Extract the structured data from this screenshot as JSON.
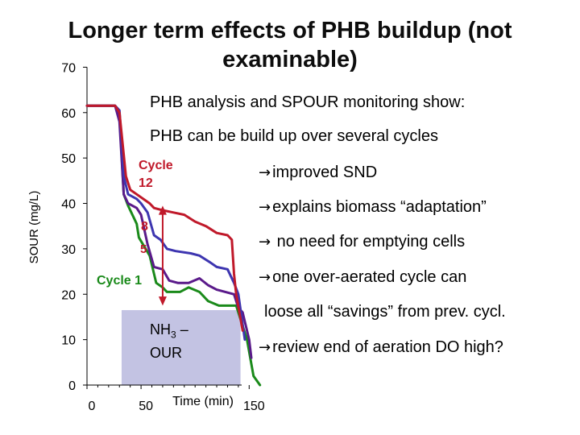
{
  "title": {
    "line1": "Longer term effects of PHB buildup (not",
    "line2": "examinable)"
  },
  "bullets": {
    "b1": "PHB analysis and SPOUR monitoring show:",
    "b2": "PHB can be build up over several cycles",
    "b3": "improved SND",
    "b4": "explains biomass “adaptation”",
    "b5": " no need for emptying cells",
    "b6": "one over-aerated cycle can",
    "b7": "loose all “savings” from prev. cycl.",
    "b8": "review end of aeration DO high?"
  },
  "nh3_box": {
    "label_main": "NH",
    "label_sub": "3",
    "label_rest": " –",
    "label_line2": "OUR",
    "color": "#c3c3e3"
  },
  "chart_data": {
    "type": "line",
    "ylabel": "SOUR (mg/L)",
    "xlabel": "Time (min)",
    "ylim": [
      0,
      70
    ],
    "yticks": [
      0,
      10,
      20,
      30,
      40,
      50,
      60,
      70
    ],
    "xticks": [
      0,
      50,
      150
    ],
    "xtick_labels": [
      "0",
      "50",
      "150"
    ],
    "nh3_region": {
      "x_start": 32,
      "x_end": 142,
      "y_top": 16.5
    },
    "series": [
      {
        "key": "c1",
        "name": "Cycle 1",
        "color": "#1a8a1a",
        "x": [
          0,
          26,
          30,
          34,
          38,
          46,
          48,
          58,
          64,
          70,
          74,
          86,
          94,
          104,
          112,
          122,
          130,
          138,
          148,
          154,
          160
        ],
        "y": [
          61.5,
          61.5,
          59.5,
          42,
          39.5,
          35.5,
          32.5,
          28.5,
          22.5,
          21.5,
          20.5,
          20.5,
          21.5,
          20.5,
          18.5,
          17.5,
          17.5,
          17.5,
          10,
          2,
          0
        ]
      },
      {
        "key": "c5",
        "name": "5",
        "color": "#5a1a8a",
        "x": [
          0,
          26,
          30,
          34,
          38,
          46,
          50,
          56,
          62,
          70,
          76,
          84,
          94,
          104,
          112,
          120,
          128,
          136,
          140,
          144,
          150,
          152
        ],
        "y": [
          61.5,
          61.5,
          58,
          42,
          40,
          39,
          37.5,
          31,
          26,
          25.5,
          23,
          22.5,
          22.5,
          23.5,
          22,
          21,
          20.5,
          20,
          17,
          16,
          10,
          6
        ]
      },
      {
        "key": "c8",
        "name": "8",
        "color": "#3d35b0",
        "x": [
          0,
          26,
          30,
          34,
          38,
          46,
          50,
          56,
          62,
          68,
          74,
          82,
          96,
          104,
          114,
          120,
          130,
          136,
          140,
          146
        ],
        "y": [
          61.5,
          61.5,
          60.5,
          46,
          42,
          41,
          40,
          38,
          33,
          32,
          30,
          29.5,
          29,
          28.5,
          27,
          26,
          25.5,
          22.5,
          20,
          10
        ]
      },
      {
        "key": "c12",
        "name": "12",
        "color": "#c0192a",
        "x": [
          0,
          26,
          30,
          36,
          40,
          46,
          52,
          58,
          62,
          70,
          80,
          90,
          100,
          110,
          120,
          130,
          134,
          136,
          138,
          144
        ],
        "y": [
          61.5,
          61.5,
          60,
          46,
          43,
          42,
          41,
          40,
          39,
          38.5,
          38,
          37.5,
          36,
          35,
          33.5,
          33,
          32,
          24.5,
          20,
          12
        ]
      }
    ]
  },
  "labels": {
    "cycle12_line1": "Cycle",
    "cycle12_line2": "12",
    "label8": "8",
    "label5": "5",
    "cycle1": "Cycle 1"
  }
}
